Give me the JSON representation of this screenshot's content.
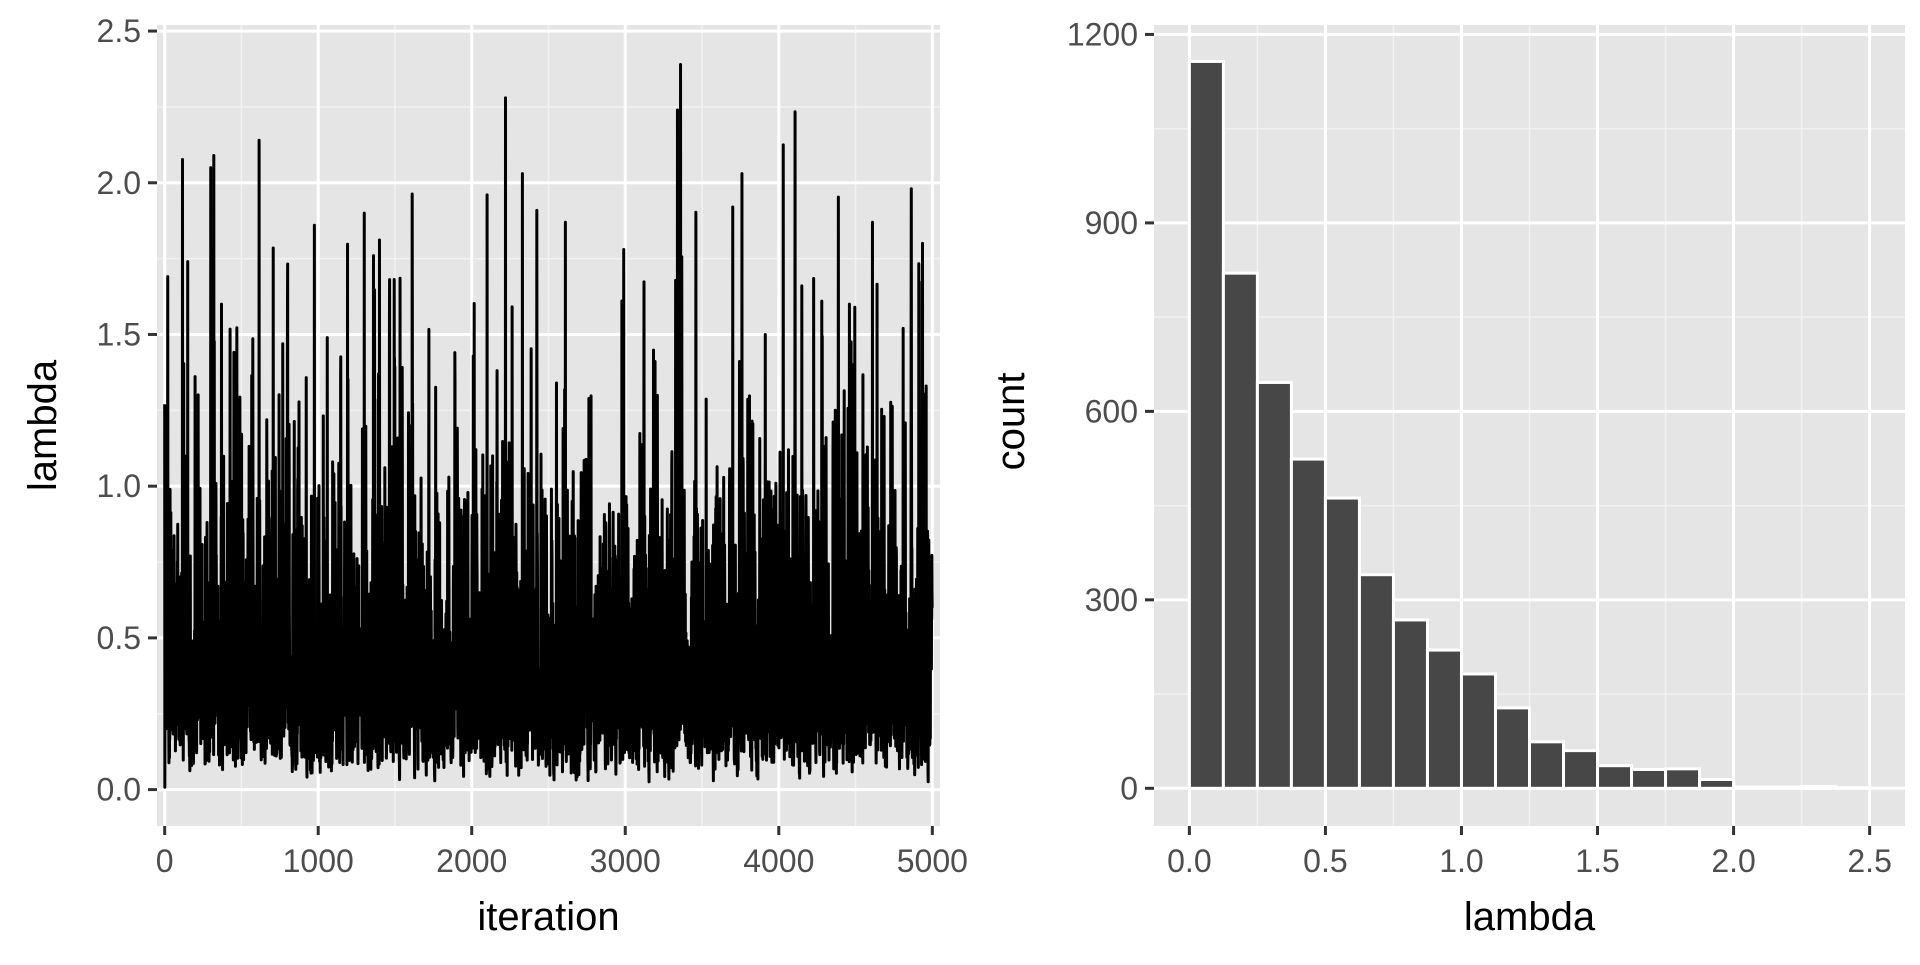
{
  "chart_data": [
    {
      "type": "line",
      "xlabel": "iteration",
      "ylabel": "lambda",
      "xlim": [
        -50,
        5050
      ],
      "ylim": [
        -0.12,
        2.52
      ],
      "x_ticks": [
        0,
        1000,
        2000,
        3000,
        4000,
        5000
      ],
      "y_ticks": [
        0.0,
        0.5,
        1.0,
        1.5,
        2.0,
        2.5
      ],
      "y_tick_labels": [
        "0.0",
        "0.5",
        "1.0",
        "1.5",
        "2.0",
        "2.5"
      ],
      "grid": true,
      "series": [
        {
          "color": "#000000",
          "iterations": 5000,
          "description_values": {
            "min": 0.0,
            "max": 2.39,
            "peaks": [
              {
                "x": 0,
                "y": 1.27
              },
              {
                "x": 150,
                "y": 1.74
              },
              {
                "x": 300,
                "y": 2.05
              },
              {
                "x": 320,
                "y": 2.09
              },
              {
                "x": 370,
                "y": 1.6
              },
              {
                "x": 615,
                "y": 2.14
              },
              {
                "x": 700,
                "y": 1.05
              },
              {
                "x": 975,
                "y": 1.86
              },
              {
                "x": 1300,
                "y": 1.9
              },
              {
                "x": 1360,
                "y": 1.76
              },
              {
                "x": 1890,
                "y": 1.44
              },
              {
                "x": 2100,
                "y": 1.96
              },
              {
                "x": 2220,
                "y": 2.28
              },
              {
                "x": 2330,
                "y": 2.03
              },
              {
                "x": 2610,
                "y": 1.87
              },
              {
                "x": 2990,
                "y": 1.78
              },
              {
                "x": 3340,
                "y": 2.24
              },
              {
                "x": 3360,
                "y": 2.39
              },
              {
                "x": 3700,
                "y": 1.92
              },
              {
                "x": 3760,
                "y": 2.03
              },
              {
                "x": 4150,
                "y": 1.66
              },
              {
                "x": 4280,
                "y": 1.61
              },
              {
                "x": 4460,
                "y": 1.6
              },
              {
                "x": 4610,
                "y": 1.87
              },
              {
                "x": 4810,
                "y": 1.52
              },
              {
                "x": 4960,
                "y": 1.33
              }
            ]
          }
        }
      ]
    },
    {
      "type": "bar",
      "xlabel": "lambda",
      "ylabel": "count",
      "xlim": [
        -0.13,
        2.63
      ],
      "ylim": [
        -60,
        1215
      ],
      "x_ticks": [
        0.0,
        0.5,
        1.0,
        1.5,
        2.0,
        2.5
      ],
      "x_tick_labels": [
        "0.0",
        "0.5",
        "1.0",
        "1.5",
        "2.0",
        "2.5"
      ],
      "y_ticks": [
        0,
        300,
        600,
        900,
        1200
      ],
      "grid": true,
      "bar_color": "#474747",
      "bar_outline": "#ffffff",
      "bins": [
        {
          "x0": 0.0,
          "x1": 0.125,
          "count": 1157
        },
        {
          "x0": 0.125,
          "x1": 0.25,
          "count": 820
        },
        {
          "x0": 0.25,
          "x1": 0.375,
          "count": 646
        },
        {
          "x0": 0.375,
          "x1": 0.5,
          "count": 524
        },
        {
          "x0": 0.5,
          "x1": 0.625,
          "count": 462
        },
        {
          "x0": 0.625,
          "x1": 0.75,
          "count": 340
        },
        {
          "x0": 0.75,
          "x1": 0.875,
          "count": 268
        },
        {
          "x0": 0.875,
          "x1": 1.0,
          "count": 220
        },
        {
          "x0": 1.0,
          "x1": 1.125,
          "count": 182
        },
        {
          "x0": 1.125,
          "x1": 1.25,
          "count": 128
        },
        {
          "x0": 1.25,
          "x1": 1.375,
          "count": 74
        },
        {
          "x0": 1.375,
          "x1": 1.5,
          "count": 60
        },
        {
          "x0": 1.5,
          "x1": 1.625,
          "count": 36
        },
        {
          "x0": 1.625,
          "x1": 1.75,
          "count": 30
        },
        {
          "x0": 1.75,
          "x1": 1.875,
          "count": 31
        },
        {
          "x0": 1.875,
          "x1": 2.0,
          "count": 14
        },
        {
          "x0": 2.0,
          "x1": 2.125,
          "count": 2
        },
        {
          "x0": 2.125,
          "x1": 2.25,
          "count": 2
        },
        {
          "x0": 2.25,
          "x1": 2.375,
          "count": 3
        },
        {
          "x0": 2.375,
          "x1": 2.5,
          "count": 1
        }
      ]
    }
  ]
}
